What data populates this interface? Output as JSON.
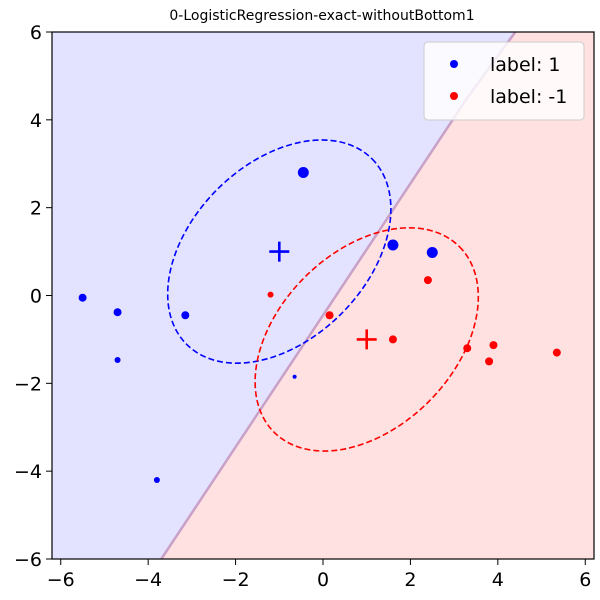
{
  "chart_data": {
    "type": "scatter",
    "title": "0-LogisticRegression-exact-withoutBottom1",
    "xlabel": "",
    "ylabel": "",
    "xlim": [
      -6.2,
      6.2
    ],
    "ylim": [
      -6,
      6
    ],
    "xticks": [
      -6,
      -4,
      -2,
      0,
      2,
      4,
      6
    ],
    "yticks": [
      -6,
      -4,
      -2,
      0,
      2,
      4,
      6
    ],
    "grid": false,
    "legend_position": "top-right",
    "decision_boundary": {
      "points": [
        [
          -3.7,
          -6.0
        ],
        [
          3.3,
          4.5
        ],
        [
          4.4,
          6.0
        ]
      ],
      "color": "#c8a0c8",
      "region_colors": {
        "label_1": "#e3e3ff",
        "label_-1": "#ffe1e1"
      }
    },
    "series": [
      {
        "name": "label: 1",
        "color": "#0000ff",
        "points": [
          {
            "x": -0.45,
            "y": 2.8,
            "size": "large"
          },
          {
            "x": 1.6,
            "y": 1.15,
            "size": "large"
          },
          {
            "x": 2.5,
            "y": 0.98,
            "size": "large"
          },
          {
            "x": -5.5,
            "y": -0.05,
            "size": "medium"
          },
          {
            "x": -4.7,
            "y": -0.38,
            "size": "medium"
          },
          {
            "x": -3.15,
            "y": -0.45,
            "size": "medium"
          },
          {
            "x": -4.7,
            "y": -1.47,
            "size": "small"
          },
          {
            "x": -3.8,
            "y": -4.2,
            "size": "small"
          },
          {
            "x": -0.65,
            "y": -1.85,
            "size": "tiny"
          }
        ],
        "center": {
          "x": -1,
          "y": 1
        },
        "ellipse": {
          "cx": -1,
          "cy": 1,
          "rx": 3.0,
          "ry": 2.0,
          "angle_deg": 45
        }
      },
      {
        "name": "label: -1",
        "color": "#ff0000",
        "points": [
          {
            "x": 1.6,
            "y": -1.0,
            "size": "medium"
          },
          {
            "x": 2.4,
            "y": 0.35,
            "size": "medium"
          },
          {
            "x": 0.15,
            "y": -0.45,
            "size": "medium"
          },
          {
            "x": -1.2,
            "y": 0.02,
            "size": "small"
          },
          {
            "x": 3.3,
            "y": -1.2,
            "size": "medium"
          },
          {
            "x": 3.9,
            "y": -1.13,
            "size": "medium"
          },
          {
            "x": 3.8,
            "y": -1.5,
            "size": "medium"
          },
          {
            "x": 5.35,
            "y": -1.3,
            "size": "medium"
          }
        ],
        "center": {
          "x": 1,
          "y": -1
        },
        "ellipse": {
          "cx": 1,
          "cy": -1,
          "rx": 3.0,
          "ry": 2.0,
          "angle_deg": 45
        }
      }
    ]
  }
}
